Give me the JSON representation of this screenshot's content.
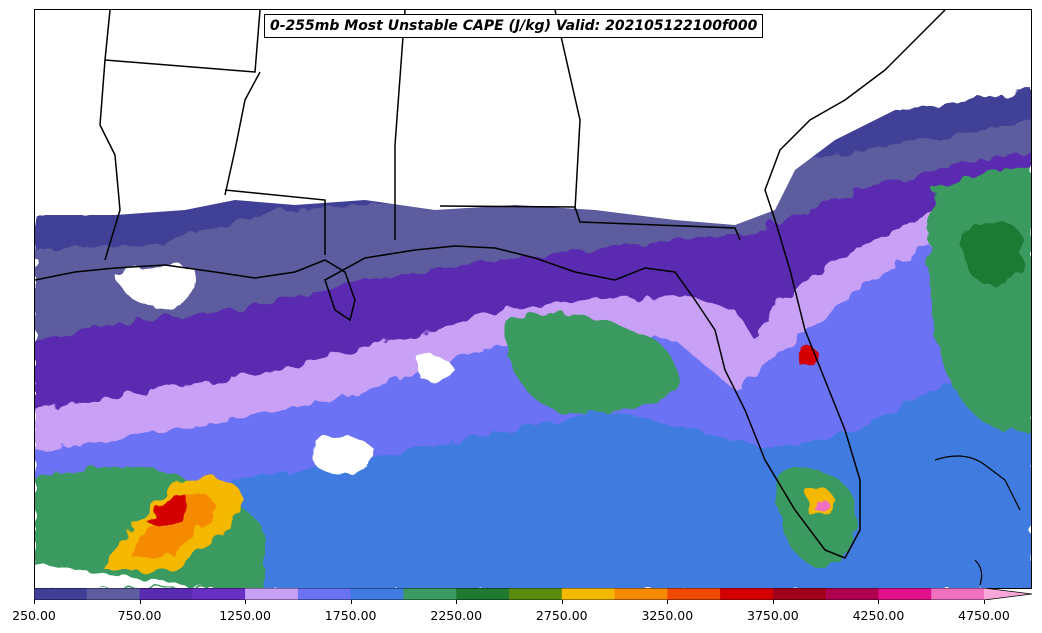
{
  "title": "0-255mb Most Unstable CAPE (J/kg) Valid: 202105122100f000",
  "colorbar": {
    "levels": [
      250,
      500,
      750,
      1000,
      1250,
      1500,
      1750,
      2000,
      2250,
      2500,
      2750,
      3000,
      3250,
      3500,
      3750,
      4000,
      4250,
      4500,
      4750,
      5000
    ],
    "colors": [
      "#3f3f97",
      "#5c5c9e",
      "#5a2ab0",
      "#6a30c4",
      "#c8a0f5",
      "#6c72f4",
      "#3f7be0",
      "#3a9a60",
      "#1f7a30",
      "#5a8c10",
      "#f5b800",
      "#f58a00",
      "#f04a00",
      "#d40000",
      "#a0001a",
      "#b00050",
      "#e0108a",
      "#f070c0",
      "#f8a8d8"
    ],
    "extend": "max",
    "tick_labels": [
      "250.00",
      "750.00",
      "1250.00",
      "1750.00",
      "2250.00",
      "2750.00",
      "3250.00",
      "3750.00",
      "4250.00",
      "4750.00"
    ]
  },
  "map": {
    "background": "#ffffff",
    "boundary_color": "#000000"
  }
}
